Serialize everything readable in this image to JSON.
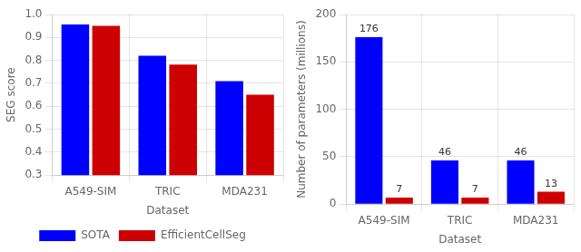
{
  "chart_data": [
    {
      "type": "bar",
      "categories": [
        "A549-SIM",
        "TRIC",
        "MDA231"
      ],
      "series": [
        {
          "name": "SOTA",
          "color": "#0000FF",
          "values": [
            0.957,
            0.82,
            0.71
          ]
        },
        {
          "name": "EfficientCellSeg",
          "color": "#CC0000",
          "values": [
            0.951,
            0.782,
            0.65
          ]
        }
      ],
      "x_label": "Dataset",
      "y_label": "SEG score",
      "ylim": [
        0.3,
        1.0
      ],
      "yticks": [
        0.3,
        0.4,
        0.5,
        0.6,
        0.7,
        0.8,
        0.9,
        {
          "value": 1.0,
          "label": "1.0"
        }
      ],
      "grid": true,
      "legend": "bottom"
    },
    {
      "type": "bar",
      "categories": [
        "A549-SIM",
        "TRIC",
        "MDA231"
      ],
      "series": [
        {
          "name": "SOTA",
          "color": "#0000FF",
          "values": [
            176,
            46,
            46
          ]
        },
        {
          "name": "EfficientCellSeg",
          "color": "#CC0000",
          "values": [
            7,
            7,
            13
          ]
        }
      ],
      "x_label": "Dataset",
      "y_label": "Number of parameters (millions)",
      "ylim": [
        0,
        200
      ],
      "yticks": [
        0,
        50,
        100,
        150,
        200
      ],
      "grid": true,
      "data_labels": true
    }
  ]
}
